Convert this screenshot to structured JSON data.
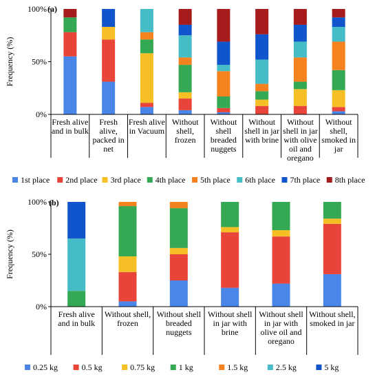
{
  "chart_data": [
    {
      "type": "bar",
      "stacked": true,
      "normalized": true,
      "panel_label": "(a)",
      "ylabel": "Frequency (%)",
      "ylim": [
        0,
        100
      ],
      "yticks": [
        "0%",
        "50%",
        "100%"
      ],
      "grid": false,
      "legend_position": "bottom",
      "categories": [
        [
          "Fresh alive",
          "and in bulk"
        ],
        [
          "Fresh",
          "alive,",
          "packed in",
          "net"
        ],
        [
          "Fresh alive",
          "in Vacuum"
        ],
        [
          "Without",
          "shell,",
          "frozen"
        ],
        [
          "Without",
          "shell",
          "breaded",
          "nuggets"
        ],
        [
          "Without",
          "shell in jar",
          "with brine"
        ],
        [
          "Without",
          "shell in jar",
          "with olive",
          "oil and",
          "oregano"
        ],
        [
          "Without",
          "shell,",
          "smoked in",
          "jar"
        ]
      ],
      "series": [
        {
          "name": "1st place",
          "color": "#4a86e8",
          "values": [
            55,
            31,
            7,
            4,
            2,
            0,
            0,
            3
          ]
        },
        {
          "name": "2nd place",
          "color": "#e8443a",
          "values": [
            23,
            40,
            4,
            11,
            4,
            8,
            8,
            4
          ]
        },
        {
          "name": "3rd place",
          "color": "#f6bf26",
          "values": [
            0,
            12,
            47,
            6,
            0,
            6,
            16,
            16
          ]
        },
        {
          "name": "4th place",
          "color": "#34a853",
          "values": [
            14,
            0,
            13,
            26,
            11,
            8,
            7,
            19
          ]
        },
        {
          "name": "5th place",
          "color": "#f5821f",
          "values": [
            0,
            0,
            7,
            7,
            24,
            7,
            23,
            27
          ]
        },
        {
          "name": "6th place",
          "color": "#46bdc6",
          "values": [
            0,
            0,
            22,
            21,
            6,
            23,
            15,
            14
          ]
        },
        {
          "name": "7th place",
          "color": "#1155cc",
          "values": [
            0,
            17,
            0,
            10,
            22,
            24,
            16,
            9
          ]
        },
        {
          "name": "8th place",
          "color": "#a61c1c",
          "values": [
            8,
            0,
            0,
            15,
            31,
            24,
            15,
            8
          ]
        }
      ]
    },
    {
      "type": "bar",
      "stacked": true,
      "normalized": true,
      "panel_label": "(b)",
      "ylabel": "Frequency (%)",
      "ylim": [
        0,
        100
      ],
      "yticks": [
        "0%",
        "50%",
        "100%"
      ],
      "grid": false,
      "legend_position": "bottom",
      "categories": [
        [
          "Fresh alive",
          "and in bulk"
        ],
        [
          "Without shell,",
          "frozen"
        ],
        [
          "Without shell",
          "breaded",
          "nuggets"
        ],
        [
          "Without shell",
          "in jar with",
          "brine"
        ],
        [
          "Without shell",
          "in jar with",
          "olive oil and",
          "oregano"
        ],
        [
          "Without shell,",
          "smoked in jar"
        ]
      ],
      "series": [
        {
          "name": "0.25 kg",
          "color": "#4a86e8",
          "values": [
            0,
            5,
            25,
            18,
            22,
            31
          ]
        },
        {
          "name": "0.5 kg",
          "color": "#e8443a",
          "values": [
            0,
            28,
            25,
            53,
            45,
            48
          ]
        },
        {
          "name": "0.75 kg",
          "color": "#f6bf26",
          "values": [
            0,
            15,
            6,
            5,
            6,
            5
          ]
        },
        {
          "name": "1 kg",
          "color": "#34a853",
          "values": [
            15,
            48,
            38,
            24,
            27,
            16
          ]
        },
        {
          "name": "1.5 kg",
          "color": "#f5821f",
          "values": [
            0,
            4,
            6,
            0,
            0,
            0
          ]
        },
        {
          "name": "2.5 kg",
          "color": "#46bdc6",
          "values": [
            50,
            0,
            0,
            0,
            0,
            0
          ]
        },
        {
          "name": "5 kg",
          "color": "#1155cc",
          "values": [
            35,
            0,
            0,
            0,
            0,
            0
          ]
        }
      ]
    }
  ]
}
